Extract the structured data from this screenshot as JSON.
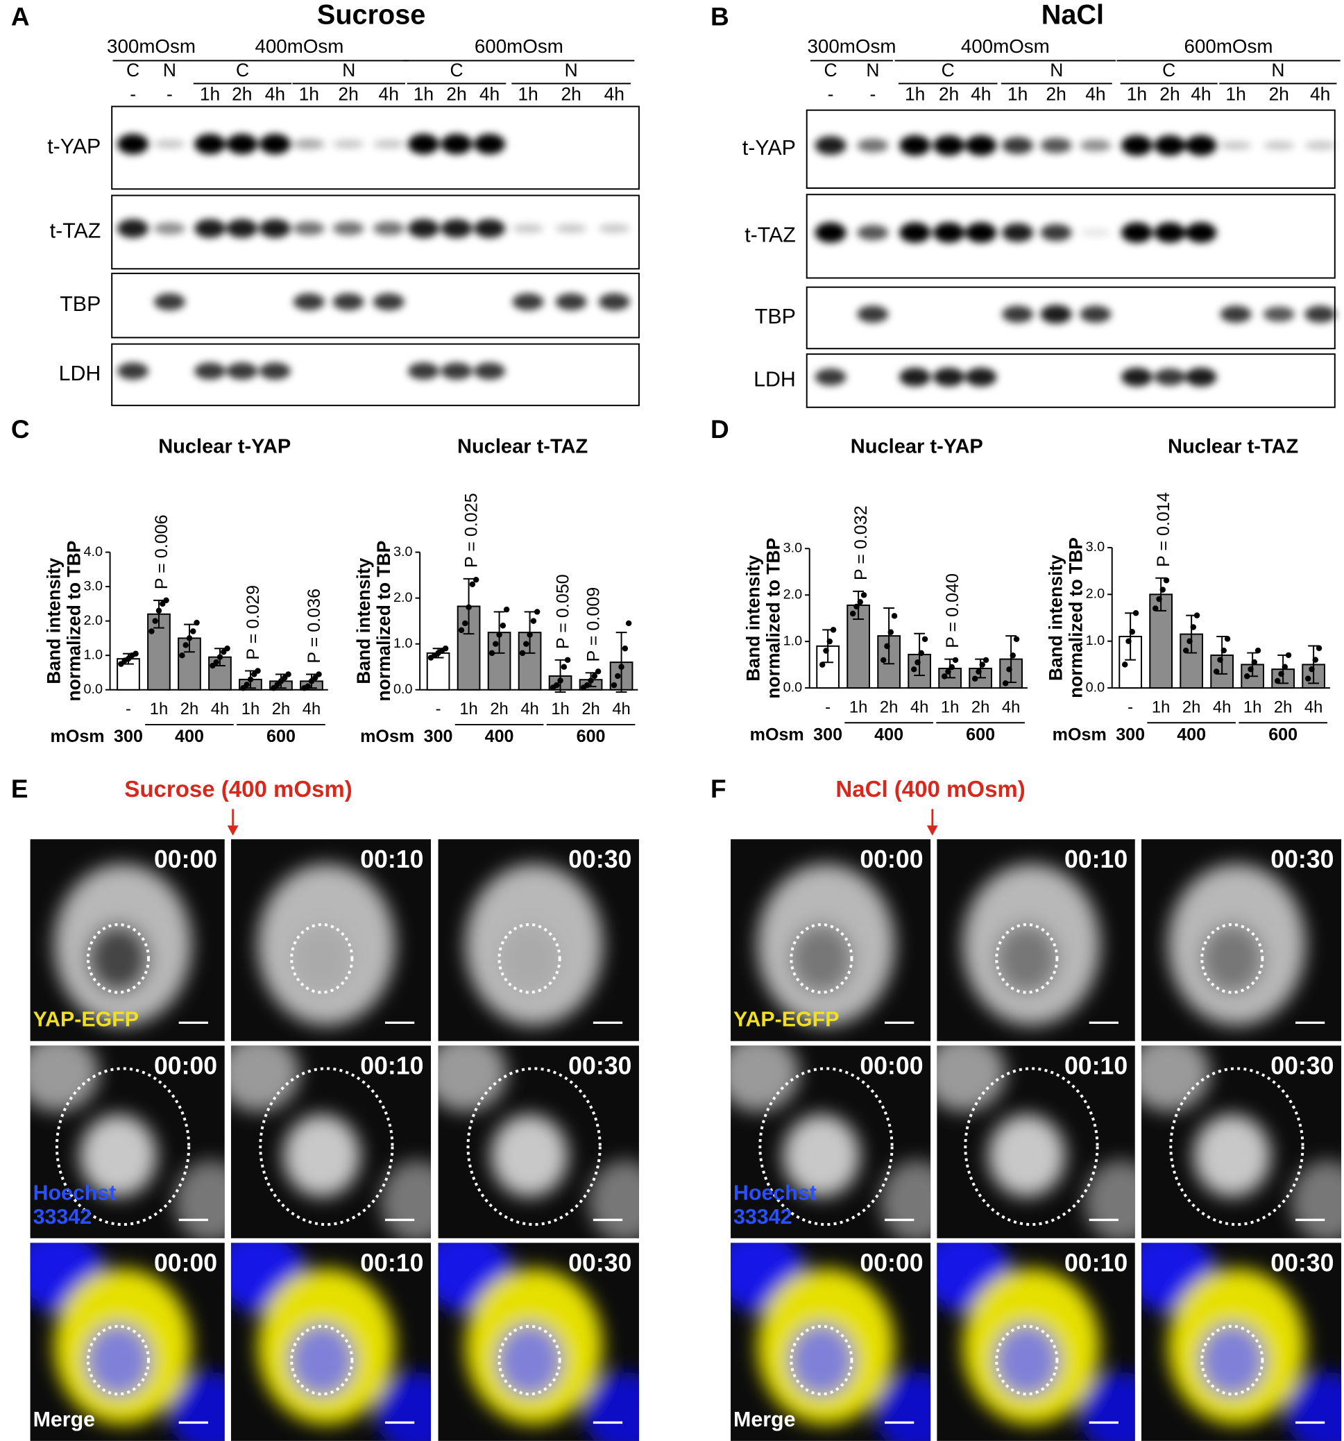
{
  "panel_labels": [
    "A",
    "B",
    "C",
    "D",
    "E",
    "F"
  ],
  "blots": [
    {
      "title": "Sucrose",
      "osm": [
        "300mOsm",
        "400mOsm",
        "600mOsm"
      ],
      "fractions": [
        "C",
        "N",
        "C",
        "N",
        "C",
        "N"
      ],
      "times": [
        "-",
        "-",
        "1h",
        "2h",
        "4h",
        "1h",
        "2h",
        "4h",
        "1h",
        "2h",
        "4h",
        "1h",
        "2h",
        "4h"
      ],
      "rows": [
        "t-YAP",
        "t-TAZ",
        "TBP",
        "LDH"
      ]
    },
    {
      "title": "NaCl",
      "osm": [
        "300mOsm",
        "400mOsm",
        "600mOsm"
      ],
      "fractions": [
        "C",
        "N",
        "C",
        "N",
        "C",
        "N"
      ],
      "times": [
        "-",
        "-",
        "1h",
        "2h",
        "4h",
        "1h",
        "2h",
        "4h",
        "1h",
        "2h",
        "4h",
        "1h",
        "2h",
        "4h"
      ],
      "rows": [
        "t-YAP",
        "t-TAZ",
        "TBP",
        "LDH"
      ]
    }
  ],
  "chart_data": [
    {
      "type": "bar",
      "title": "Nuclear t-YAP",
      "ylabel": [
        "Band intensity",
        "normalized to TBP"
      ],
      "categories": [
        "-",
        "1h",
        "2h",
        "4h",
        "1h",
        "2h",
        "4h"
      ],
      "xlabel": "mOsm",
      "group_labels": [
        "300",
        "400",
        "600"
      ],
      "values": [
        0.9,
        2.2,
        1.5,
        0.95,
        0.3,
        0.25,
        0.25
      ],
      "errors": [
        0.15,
        0.4,
        0.4,
        0.25,
        0.25,
        0.2,
        0.2
      ],
      "points": [
        [
          0.75,
          0.85,
          0.9,
          1.0,
          1.05
        ],
        [
          1.7,
          2.0,
          2.3,
          2.5,
          2.6
        ],
        [
          1.0,
          1.3,
          1.5,
          1.7,
          1.95
        ],
        [
          0.7,
          0.8,
          0.95,
          1.1,
          1.2
        ],
        [
          0.05,
          0.15,
          0.3,
          0.45,
          0.55
        ],
        [
          0.05,
          0.15,
          0.25,
          0.35,
          0.45
        ],
        [
          0.05,
          0.1,
          0.25,
          0.35,
          0.45
        ]
      ],
      "colors": [
        "#ffffff",
        "#8c8c8c",
        "#8c8c8c",
        "#8c8c8c",
        "#8c8c8c",
        "#8c8c8c",
        "#8c8c8c"
      ],
      "annotations": [
        null,
        "P = 0.006",
        null,
        null,
        "P = 0.029",
        null,
        "P = 0.036"
      ],
      "ylim": [
        0,
        4
      ],
      "yticks": [
        {
          "value": 0,
          "label": "0.0"
        },
        {
          "value": 1,
          "label": "1.0"
        },
        {
          "value": 2,
          "label": "2.0"
        },
        {
          "value": 3,
          "label": "3.0"
        },
        {
          "value": 4,
          "label": "4.0"
        }
      ]
    },
    {
      "type": "bar",
      "title": "Nuclear t-TAZ",
      "ylabel": [
        "Band intensity",
        "normalized to TBP"
      ],
      "categories": [
        "-",
        "1h",
        "2h",
        "4h",
        "1h",
        "2h",
        "4h"
      ],
      "xlabel": "mOsm",
      "group_labels": [
        "300",
        "400",
        "600"
      ],
      "values": [
        0.8,
        1.82,
        1.25,
        1.25,
        0.3,
        0.22,
        0.6
      ],
      "errors": [
        0.1,
        0.6,
        0.45,
        0.45,
        0.35,
        0.15,
        0.65
      ],
      "points": [
        [
          0.7,
          0.75,
          0.8,
          0.85,
          0.9
        ],
        [
          1.3,
          1.45,
          1.8,
          2.3,
          2.4
        ],
        [
          0.8,
          1.0,
          1.2,
          1.4,
          1.75
        ],
        [
          0.8,
          1.0,
          1.2,
          1.5,
          1.7
        ],
        [
          0.05,
          0.1,
          0.2,
          0.5,
          0.65
        ],
        [
          0.05,
          0.1,
          0.2,
          0.3,
          0.4
        ],
        [
          0.1,
          0.3,
          0.5,
          0.9,
          1.45
        ]
      ],
      "colors": [
        "#ffffff",
        "#8c8c8c",
        "#8c8c8c",
        "#8c8c8c",
        "#8c8c8c",
        "#8c8c8c",
        "#8c8c8c"
      ],
      "annotations": [
        null,
        "P = 0.025",
        null,
        null,
        "P = 0.050",
        "P = 0.009",
        null
      ],
      "ylim": [
        0,
        3
      ],
      "yticks": [
        {
          "value": 0,
          "label": "0.0"
        },
        {
          "value": 1,
          "label": "1.0"
        },
        {
          "value": 2,
          "label": "2.0"
        },
        {
          "value": 3,
          "label": "3.0"
        }
      ]
    },
    {
      "type": "bar",
      "title": "Nuclear t-YAP",
      "ylabel": [
        "Band intensity",
        "normalized to TBP"
      ],
      "categories": [
        "-",
        "1h",
        "2h",
        "4h",
        "1h",
        "2h",
        "4h"
      ],
      "xlabel": "mOsm",
      "group_labels": [
        "300",
        "400",
        "600"
      ],
      "values": [
        0.9,
        1.78,
        1.12,
        0.72,
        0.42,
        0.42,
        0.62
      ],
      "errors": [
        0.35,
        0.3,
        0.6,
        0.45,
        0.2,
        0.2,
        0.5
      ],
      "points": [
        [
          0.5,
          0.8,
          1.0,
          1.25
        ],
        [
          1.6,
          1.75,
          1.85,
          2.0
        ],
        [
          0.6,
          0.9,
          1.2,
          1.55
        ],
        [
          0.4,
          0.55,
          0.75,
          1.05
        ],
        [
          0.25,
          0.35,
          0.45,
          0.6
        ],
        [
          0.2,
          0.35,
          0.5,
          0.6
        ],
        [
          0.1,
          0.4,
          0.7,
          1.05
        ]
      ],
      "colors": [
        "#ffffff",
        "#8c8c8c",
        "#8c8c8c",
        "#8c8c8c",
        "#8c8c8c",
        "#8c8c8c",
        "#8c8c8c"
      ],
      "annotations": [
        null,
        "P = 0.032",
        null,
        null,
        "P = 0.040",
        null,
        null
      ],
      "ylim": [
        0,
        3
      ],
      "yticks": [
        {
          "value": 0,
          "label": "0.0"
        },
        {
          "value": 1,
          "label": "1.0"
        },
        {
          "value": 2,
          "label": "2.0"
        },
        {
          "value": 3,
          "label": "3.0"
        }
      ]
    },
    {
      "type": "bar",
      "title": "Nuclear t-TAZ",
      "ylabel": [
        "Band intensity",
        "normalized to TBP"
      ],
      "categories": [
        "-",
        "1h",
        "2h",
        "4h",
        "1h",
        "2h",
        "4h"
      ],
      "xlabel": "mOsm",
      "group_labels": [
        "300",
        "400",
        "600"
      ],
      "values": [
        1.1,
        2.0,
        1.15,
        0.7,
        0.5,
        0.4,
        0.5
      ],
      "errors": [
        0.5,
        0.35,
        0.4,
        0.4,
        0.25,
        0.3,
        0.4
      ],
      "points": [
        [
          0.5,
          1.0,
          1.2,
          1.6
        ],
        [
          1.7,
          1.9,
          2.1,
          2.3
        ],
        [
          0.8,
          1.0,
          1.3,
          1.55
        ],
        [
          0.35,
          0.6,
          0.8,
          1.05
        ],
        [
          0.25,
          0.4,
          0.55,
          0.8
        ],
        [
          0.15,
          0.3,
          0.45,
          0.7
        ],
        [
          0.2,
          0.4,
          0.6,
          0.85
        ]
      ],
      "colors": [
        "#ffffff",
        "#8c8c8c",
        "#8c8c8c",
        "#8c8c8c",
        "#8c8c8c",
        "#8c8c8c",
        "#8c8c8c"
      ],
      "annotations": [
        null,
        "P = 0.014",
        null,
        null,
        null,
        null,
        null
      ],
      "ylim": [
        0,
        3
      ],
      "yticks": [
        {
          "value": 0,
          "label": "0.0"
        },
        {
          "value": 1,
          "label": "1.0"
        },
        {
          "value": 2,
          "label": "2.0"
        },
        {
          "value": 3,
          "label": "3.0"
        }
      ]
    }
  ],
  "imaging": [
    {
      "title": "Sucrose (400 mOsm)",
      "times": [
        "00:00",
        "00:10",
        "00:30"
      ],
      "channels": [
        [
          "YAP-EGFP"
        ],
        [
          "Hoechst",
          "33342"
        ],
        [
          "Merge"
        ]
      ]
    },
    {
      "title": "NaCl (400 mOsm)",
      "times": [
        "00:00",
        "00:10",
        "00:30"
      ],
      "channels": [
        [
          "YAP-EGFP"
        ],
        [
          "Hoechst",
          "33342"
        ],
        [
          "Merge"
        ]
      ]
    }
  ]
}
